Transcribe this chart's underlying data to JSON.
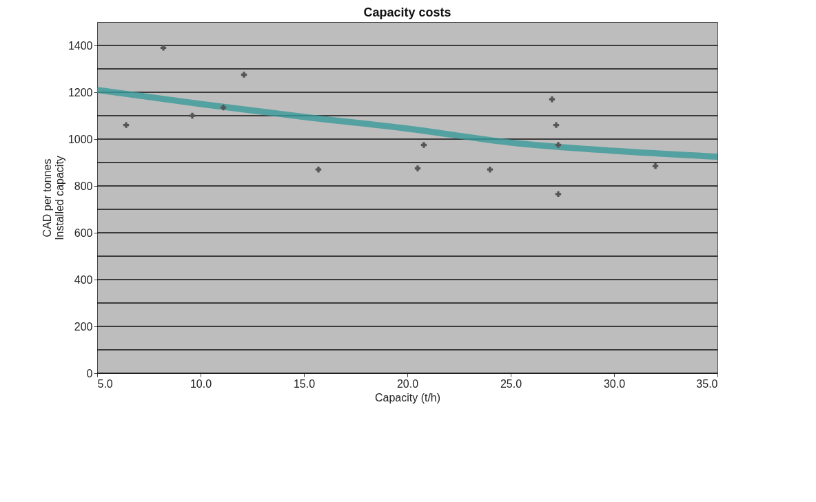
{
  "chart_data": {
    "type": "scatter",
    "title": "Capacity costs",
    "xlabel": "Capacity (t/h)",
    "ylabel": "CAD per tonnes\nInstalled capacity",
    "xlim": [
      5,
      35
    ],
    "ylim": [
      0,
      1500
    ],
    "xticks": [
      {
        "value": 5,
        "label": "5.0"
      },
      {
        "value": 10,
        "label": "10.0"
      },
      {
        "value": 15,
        "label": "15.0"
      },
      {
        "value": 20,
        "label": "20.0"
      },
      {
        "value": 25,
        "label": "25.0"
      },
      {
        "value": 30,
        "label": "30.0"
      },
      {
        "value": 35,
        "label": "35.0"
      }
    ],
    "yticks": [
      0,
      {
        "value": 100,
        "label": null
      },
      200,
      {
        "value": 300,
        "label": null
      },
      400,
      {
        "value": 500,
        "label": null
      },
      600,
      {
        "value": 700,
        "label": null
      },
      800,
      {
        "value": 900,
        "label": null
      },
      1000,
      {
        "value": 1100,
        "label": null
      },
      1200,
      {
        "value": 1300,
        "label": null
      },
      1400
    ],
    "grid": "y",
    "marker": "cross",
    "series": [
      {
        "color": "#555555",
        "x": [
          6.4,
          8.2,
          9.6,
          11.1,
          12.1,
          15.7,
          20.5,
          20.8,
          24.0,
          27.0,
          27.2,
          27.3,
          27.3,
          32.0
        ],
        "values": [
          1060,
          1390,
          1100,
          1135,
          1275,
          870,
          875,
          975,
          870,
          1170,
          1060,
          975,
          765,
          885
        ]
      },
      {
        "type": "line",
        "color": "#3a9a9a",
        "marker": "none",
        "line_style": "solid",
        "x": [
          5,
          10,
          15,
          20,
          25,
          30,
          35
        ],
        "values": [
          1210,
          1150,
          1095,
          1045,
          985,
          950,
          925
        ]
      }
    ]
  }
}
